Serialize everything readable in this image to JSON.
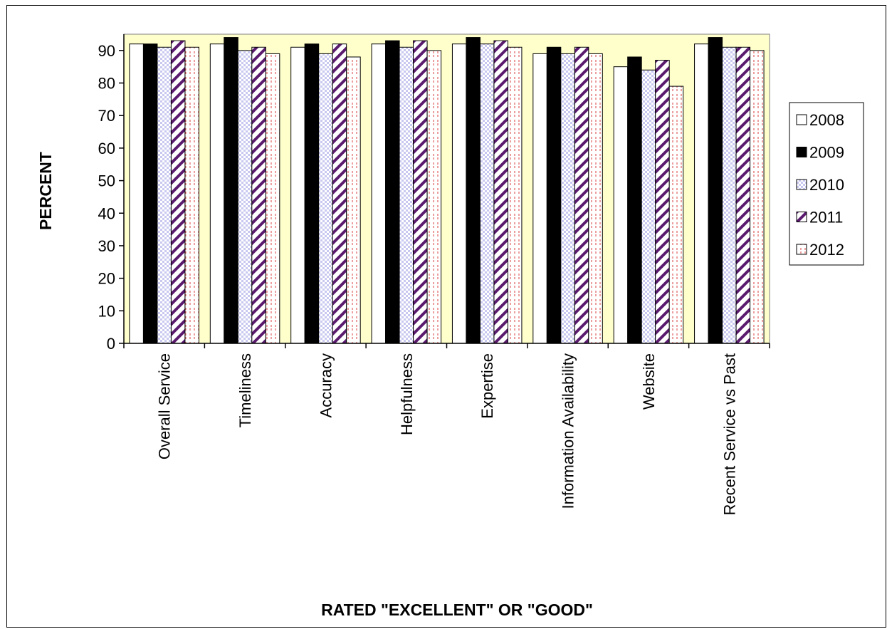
{
  "chart_data": {
    "type": "bar",
    "title": "",
    "xlabel": "RATED \"EXCELLENT\" OR \"GOOD\"",
    "ylabel": "PERCENT",
    "ylim": [
      0,
      95
    ],
    "yticks": [
      0,
      10,
      20,
      30,
      40,
      50,
      60,
      70,
      80,
      90
    ],
    "categories": [
      "Overall Service",
      "Timeliness",
      "Accuracy",
      "Helpfulness",
      "Expertise",
      "Information Availability",
      "Website",
      "Recent Service vs Past"
    ],
    "series": [
      {
        "name": "2008",
        "values": [
          92,
          92,
          91,
          92,
          92,
          89,
          85,
          92
        ]
      },
      {
        "name": "2009",
        "values": [
          92,
          94,
          92,
          93,
          94,
          91,
          88,
          94
        ]
      },
      {
        "name": "2010",
        "values": [
          91,
          90,
          89,
          91,
          92,
          89,
          84,
          91
        ]
      },
      {
        "name": "2011",
        "values": [
          93,
          91,
          92,
          93,
          93,
          91,
          87,
          91
        ]
      },
      {
        "name": "2012",
        "values": [
          91,
          89,
          88,
          90,
          91,
          89,
          79,
          90
        ]
      }
    ],
    "legend_position": "right",
    "plot_background": "#ffffcc",
    "grid": false
  }
}
